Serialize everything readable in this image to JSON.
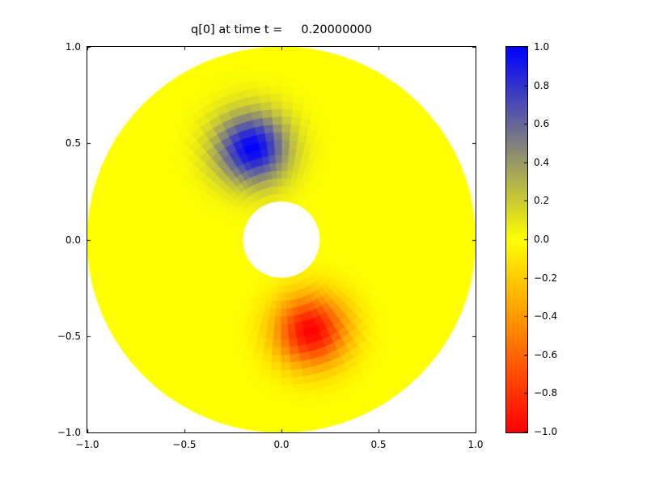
{
  "figure": {
    "background": "#ffffff",
    "axes_edge_color": "#000000"
  },
  "chart_data": {
    "type": "heatmap",
    "title": "q[0] at time t =     0.20000000",
    "xlabel": "",
    "ylabel": "",
    "xlim": [
      -1.0,
      1.0
    ],
    "ylim": [
      -1.0,
      1.0
    ],
    "grid": false,
    "xticks": {
      "values": [
        -1.0,
        -0.5,
        0.0,
        0.5,
        1.0
      ],
      "labels": [
        "−1.0",
        "−0.5",
        "0.0",
        "0.5",
        "1.0"
      ]
    },
    "yticks": {
      "values": [
        1.0,
        0.5,
        0.0,
        -0.5,
        -1.0
      ],
      "labels": [
        "1.0",
        "0.5",
        "0.0",
        "−0.5",
        "−1.0"
      ]
    },
    "geometry": {
      "shape": "annulus",
      "center": [
        0.0,
        0.0
      ],
      "inner_radius": 0.2,
      "outer_radius": 1.0,
      "mesh": {
        "nr": 20,
        "ntheta": 80
      }
    },
    "field": {
      "description": "pseudocolor of q on polar mesh: background q=0 (yellow), positive Gaussian hump (blue) and negative Gaussian hump (red)",
      "qmin": -1.0,
      "qmax": 1.0,
      "blobs": [
        {
          "cx": -0.1545,
          "cy": 0.4755,
          "amplitude": 1.0,
          "gaussian_k": 30
        },
        {
          "cx": 0.1545,
          "cy": -0.4755,
          "amplitude": -1.0,
          "gaussian_k": 30
        }
      ]
    },
    "colormap": {
      "stops": [
        {
          "value": -1.0,
          "color": "#ff0000"
        },
        {
          "value": 0.0,
          "color": "#ffff00"
        },
        {
          "value": 1.0,
          "color": "#0000ff"
        }
      ]
    },
    "colorbar": {
      "position": "right",
      "vmin": -1.0,
      "vmax": 1.0,
      "ticks": {
        "values": [
          1.0,
          0.8,
          0.6,
          0.4,
          0.2,
          0.0,
          -0.2,
          -0.4,
          -0.6,
          -0.8,
          -1.0
        ],
        "labels": [
          "1.0",
          "0.8",
          "0.6",
          "0.4",
          "0.2",
          "0.0",
          "−0.2",
          "−0.4",
          "−0.6",
          "−0.8",
          "−1.0"
        ]
      }
    }
  }
}
